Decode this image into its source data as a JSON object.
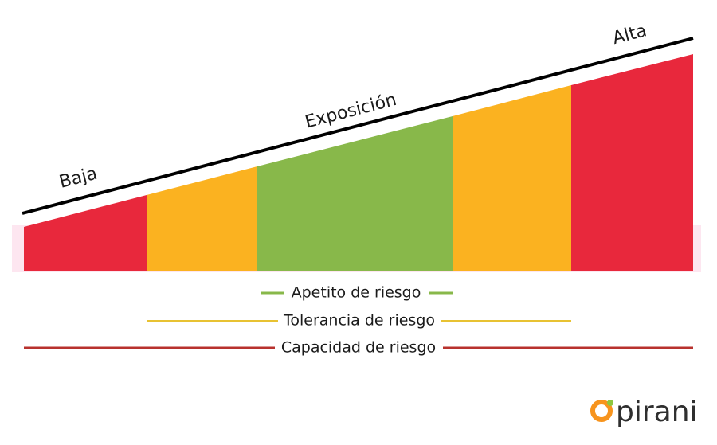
{
  "axis_labels": {
    "low": "Baja",
    "middle": "Exposición",
    "high": "Alta"
  },
  "legend": [
    "Apetito de riesgo",
    "Tolerancia de riesgo",
    "Capacidad de riesgo"
  ],
  "logo": "pirani"
}
